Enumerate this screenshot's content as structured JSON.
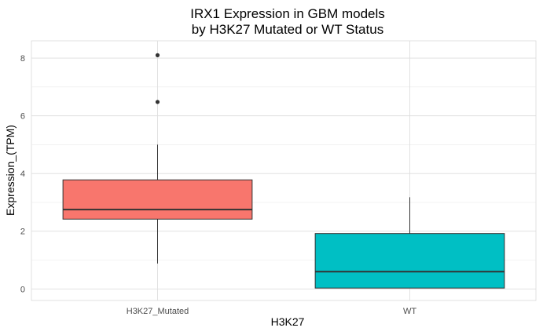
{
  "chart_data": {
    "type": "boxplot",
    "title_lines": [
      "IRX1 Expression in GBM models",
      "by H3K27 Mutated or WT Status"
    ],
    "xlabel": "H3K27",
    "ylabel": "Expression_(TPM)",
    "ylim": [
      -0.4,
      8.6
    ],
    "yticks": [
      0,
      2,
      4,
      6,
      8
    ],
    "grid": true,
    "categories": [
      "H3K27_Mutated",
      "WT"
    ],
    "boxes": [
      {
        "category": "H3K27_Mutated",
        "whisker_low": 0.88,
        "q1": 2.42,
        "median": 2.75,
        "q3": 3.78,
        "whisker_high": 5.0,
        "outliers": [
          6.48,
          8.1
        ],
        "fill": "#F8766D"
      },
      {
        "category": "WT",
        "whisker_low": 0.03,
        "q1": 0.03,
        "median": 0.6,
        "q3": 1.92,
        "whisker_high": 3.18,
        "outliers": [],
        "fill": "#00BFC4"
      }
    ]
  }
}
